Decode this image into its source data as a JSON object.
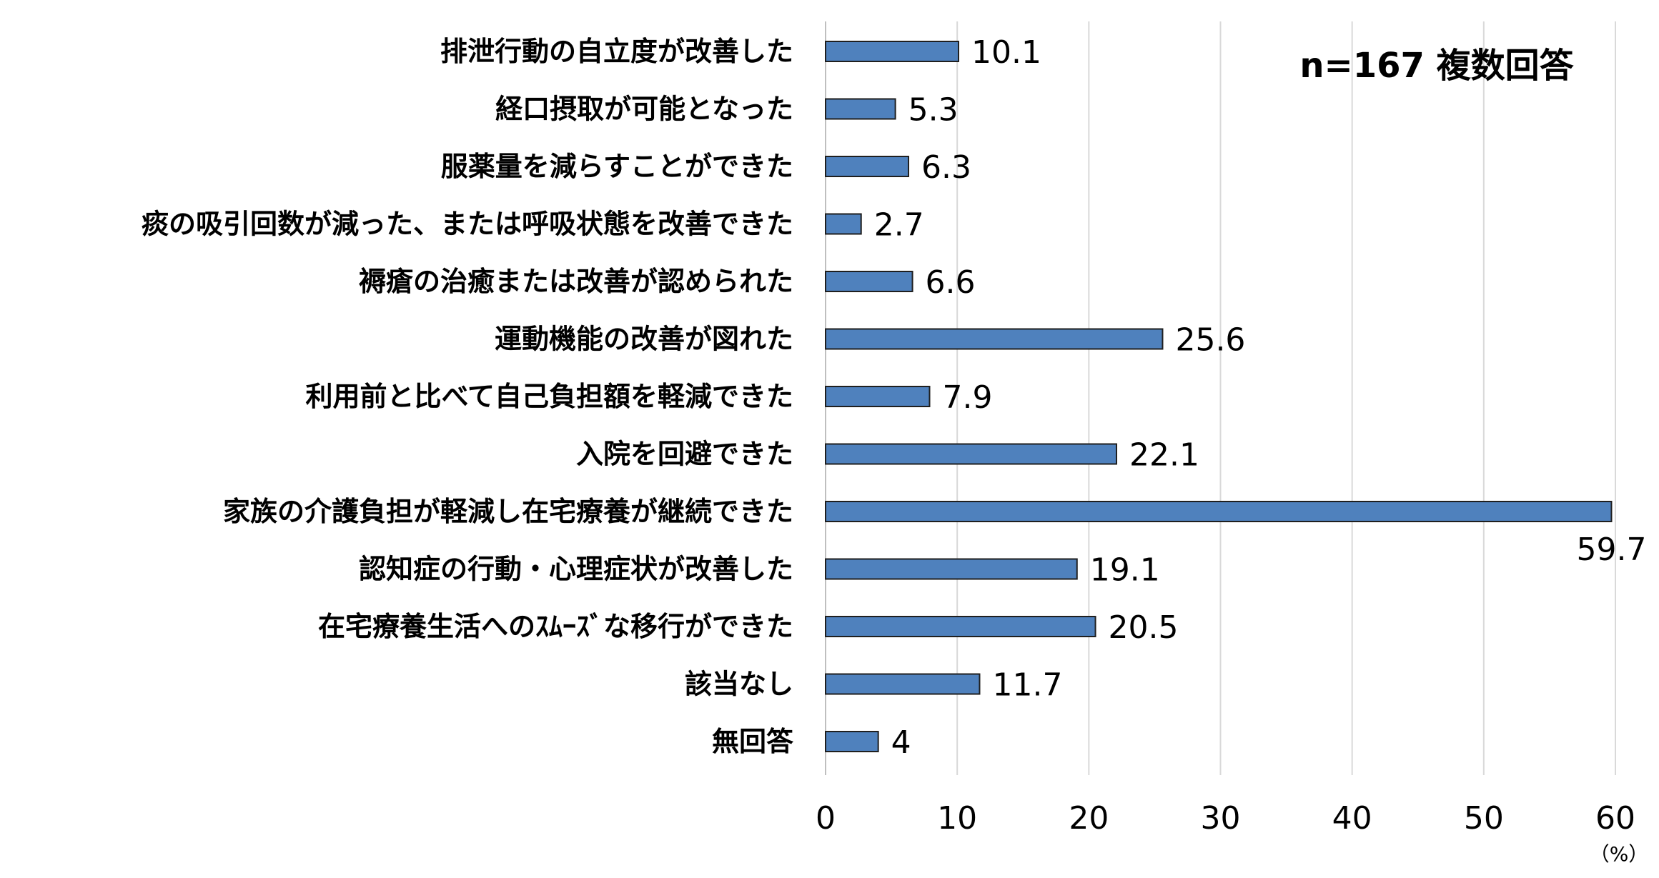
{
  "chart_data": {
    "type": "bar",
    "orientation": "horizontal",
    "title": "",
    "note": "n=167  複数回答",
    "unit": "（%）",
    "xlim": [
      0,
      60
    ],
    "x_ticks": [
      "0",
      "10",
      "20",
      "30",
      "40",
      "50",
      "60"
    ],
    "grid": true,
    "bar_color": "#4F81BD",
    "bar_edge_color": "#1F1F1F",
    "grid_color": "#D9D9D9",
    "categories": [
      "排泄行動の自立度が改善した",
      "経口摂取が可能となった",
      "服薬量を減らすことができた",
      "痰の吸引回数が減った、または呼吸状態を改善できた",
      "褥瘡の治癒または改善が認められた",
      "運動機能の改善が図れた",
      "利用前と比べて自己負担額を軽減できた",
      "入院を回避できた",
      "家族の介護負担が軽減し在宅療養が継続できた",
      "認知症の行動・心理症状が改善した",
      "在宅療養生活へのｽﾑｰｽﾞな移行ができた",
      "該当なし",
      "無回答"
    ],
    "values": [
      10.1,
      5.3,
      6.3,
      2.7,
      6.6,
      25.6,
      7.9,
      22.1,
      59.7,
      19.1,
      20.5,
      11.7,
      4
    ],
    "value_labels": [
      "10.1",
      "5.3",
      "6.3",
      "2.7",
      "6.6",
      "25.6",
      "7.9",
      "22.1",
      "59.7",
      "19.1",
      "20.5",
      "11.7",
      "4"
    ]
  }
}
